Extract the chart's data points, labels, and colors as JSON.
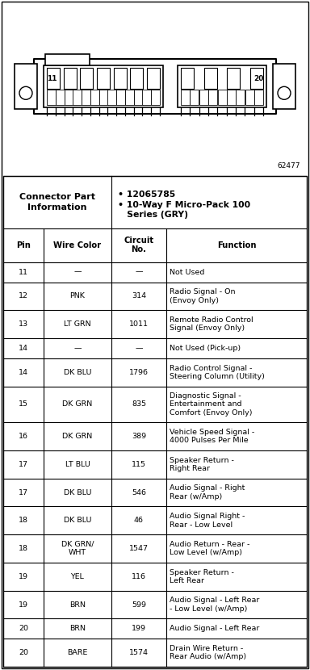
{
  "diagram_id": "62477",
  "connector_info_line1": "12065785",
  "connector_info_line2": "10-Way F Micro-Pack 100 Series (GRY)",
  "headers": [
    "Pin",
    "Wire Color",
    "Circuit\nNo.",
    "Function"
  ],
  "rows": [
    [
      "11",
      "—",
      "—",
      "Not Used"
    ],
    [
      "12",
      "PNK",
      "314",
      "Radio Signal - On\n(Envoy Only)"
    ],
    [
      "13",
      "LT GRN",
      "1011",
      "Remote Radio Control\nSignal (Envoy Only)"
    ],
    [
      "14",
      "—",
      "—",
      "Not Used (Pick-up)"
    ],
    [
      "14",
      "DK BLU",
      "1796",
      "Radio Control Signal -\nSteering Column (Utility)"
    ],
    [
      "15",
      "DK GRN",
      "835",
      "Diagnostic Signal -\nEntertainment and\nComfort (Envoy Only)"
    ],
    [
      "16",
      "DK GRN",
      "389",
      "Vehicle Speed Signal -\n4000 Pulses Per Mile"
    ],
    [
      "17",
      "LT BLU",
      "115",
      "Speaker Return -\nRight Rear"
    ],
    [
      "17",
      "DK BLU",
      "546",
      "Audio Signal - Right\nRear (w/Amp)"
    ],
    [
      "18",
      "DK BLU",
      "46",
      "Audio Signal Right -\nRear - Low Level"
    ],
    [
      "18",
      "DK GRN/\nWHT",
      "1547",
      "Audio Return - Rear -\nLow Level (w/Amp)"
    ],
    [
      "19",
      "YEL",
      "116",
      "Speaker Return -\nLeft Rear"
    ],
    [
      "19",
      "BRN",
      "599",
      "Audio Signal - Left Rear\n- Low Level (w/Amp)"
    ],
    [
      "20",
      "BRN",
      "199",
      "Audio Signal - Left Rear"
    ],
    [
      "20",
      "BARE",
      "1574",
      "Drain Wire Return -\nRear Audio (w/Amp)"
    ]
  ],
  "bg_color": "#ffffff",
  "cell_fontsize": 6.8,
  "header_fontsize": 7.2,
  "title_fontsize": 8.0,
  "bullet_fontsize": 7.8
}
